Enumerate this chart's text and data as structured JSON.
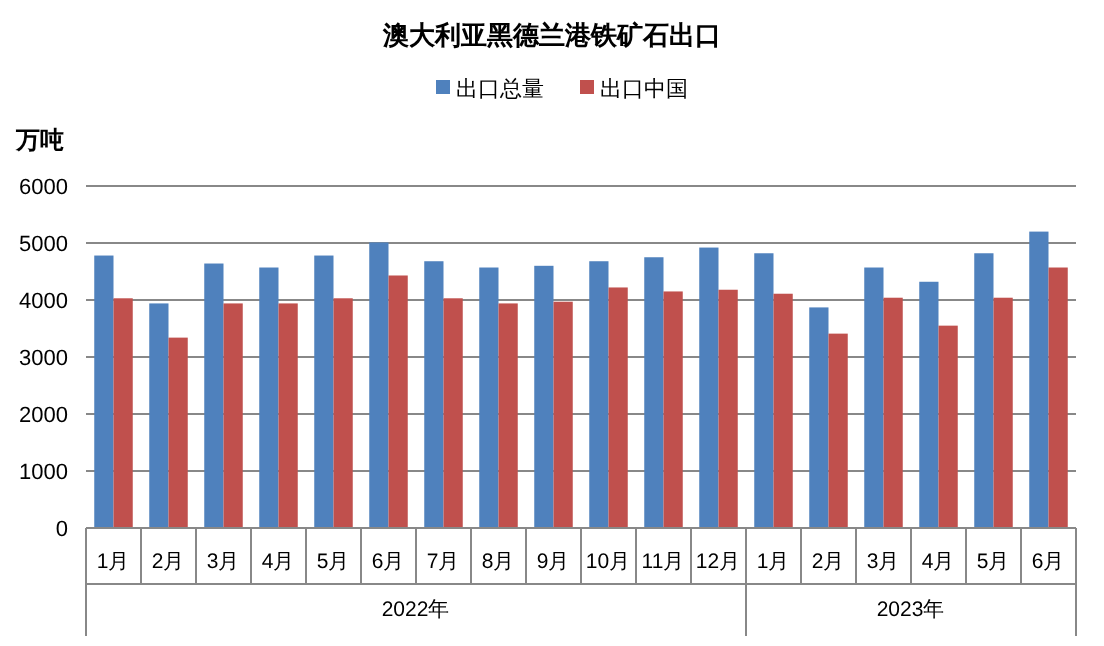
{
  "chart_data": {
    "type": "bar",
    "title": "澳大利亚黑德兰港铁矿石出口",
    "ylabel": "万吨",
    "categories": [
      "1月",
      "2月",
      "3月",
      "4月",
      "5月",
      "6月",
      "7月",
      "8月",
      "9月",
      "10月",
      "11月",
      "12月",
      "1月",
      "2月",
      "3月",
      "4月",
      "5月",
      "6月"
    ],
    "series": [
      {
        "name": "出口总量",
        "color": "#4f81bd",
        "values": [
          4780,
          3940,
          4640,
          4570,
          4780,
          5010,
          4680,
          4570,
          4600,
          4680,
          4750,
          4920,
          4820,
          3870,
          4570,
          4320,
          4820,
          5200
        ]
      },
      {
        "name": "出口中国",
        "color": "#c0504d",
        "values": [
          4030,
          3340,
          3940,
          3940,
          4030,
          4430,
          4030,
          3940,
          3970,
          4220,
          4150,
          4180,
          4110,
          3410,
          4040,
          3550,
          4040,
          4570
        ]
      }
    ],
    "annotations": [
      "2022年",
      "2023年"
    ],
    "ylim": [
      0,
      6000
    ],
    "yticks": [
      0,
      1000,
      2000,
      3000,
      4000,
      5000,
      6000
    ],
    "grid": "y",
    "legend": "top"
  }
}
